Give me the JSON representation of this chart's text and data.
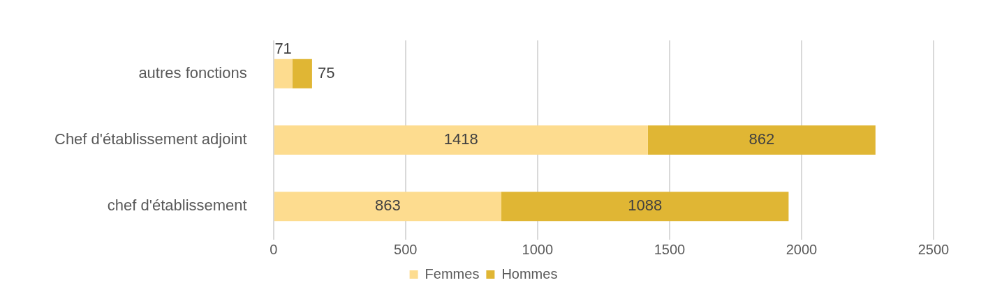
{
  "chart_data": {
    "type": "bar",
    "orientation": "horizontal",
    "stacked": true,
    "categories": [
      "autres fonctions",
      "Chef d'établissement adjoint",
      "chef d'établissement"
    ],
    "series": [
      {
        "name": "Femmes",
        "color": "#fddc8f",
        "values": [
          71,
          1418,
          863
        ]
      },
      {
        "name": "Hommes",
        "color": "#e0b634",
        "values": [
          75,
          862,
          1088
        ]
      }
    ],
    "xlim": [
      0,
      2500
    ],
    "xticks": [
      0,
      500,
      1000,
      1500,
      2000,
      2500
    ],
    "grid": "x",
    "legend": "bottom",
    "data_labels": true
  }
}
